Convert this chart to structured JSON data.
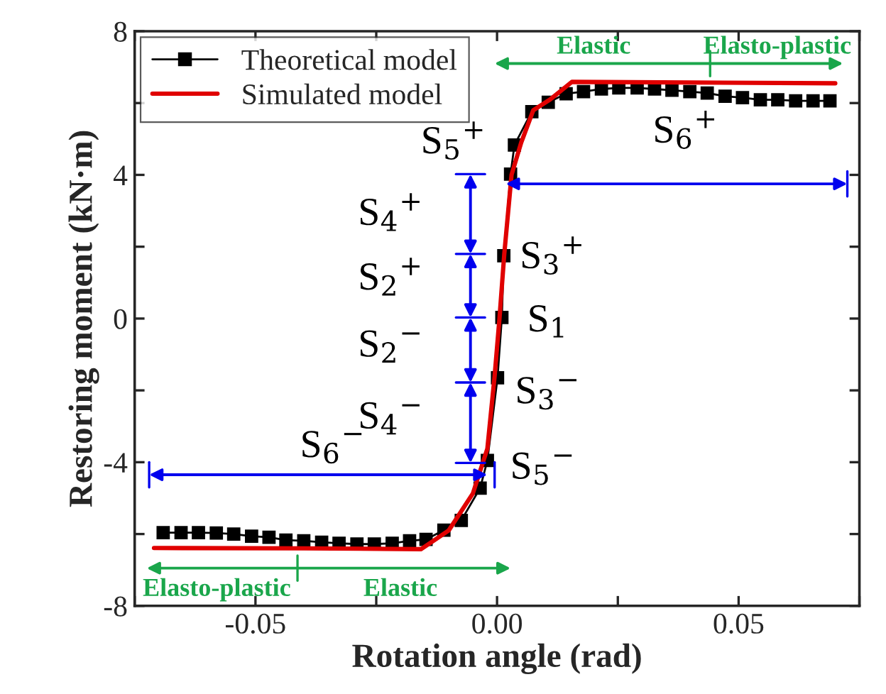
{
  "chart_data": {
    "type": "line",
    "xlabel": "Rotation angle (rad)",
    "ylabel": "Restoring moment (kN·m)",
    "xlim": [
      -0.075,
      0.075
    ],
    "ylim": [
      -8,
      8
    ],
    "xticks": [
      {
        "value": -0.075,
        "label": null
      },
      {
        "value": -0.05,
        "label": "-0.05"
      },
      {
        "value": -0.025,
        "label": null
      },
      {
        "value": 0,
        "label": "0.00"
      },
      {
        "value": 0.025,
        "label": null
      },
      {
        "value": 0.05,
        "label": "0.05"
      },
      {
        "value": 0.075,
        "label": null
      }
    ],
    "yticks": [
      -8,
      {
        "value": -6,
        "label": null
      },
      -4,
      {
        "value": -2,
        "label": null
      },
      0,
      {
        "value": 2,
        "label": null
      },
      4,
      {
        "value": 6,
        "label": null
      },
      8
    ],
    "legend": "top left",
    "grid": false,
    "series": [
      {
        "name": "Theoretical model",
        "color": "#000000",
        "marker": "square",
        "x": [
          -0.0691,
          -0.0654,
          -0.0618,
          -0.0581,
          -0.0545,
          -0.0508,
          -0.0472,
          -0.0437,
          -0.04,
          -0.0363,
          -0.0327,
          -0.029,
          -0.0254,
          -0.0217,
          -0.0181,
          -0.0147,
          -0.011,
          -0.0074,
          -0.0035,
          -0.002,
          0.0001,
          0.001,
          0.0014,
          0.0028,
          0.0036,
          0.0072,
          0.0106,
          0.0143,
          0.0179,
          0.0216,
          0.0252,
          0.029,
          0.0326,
          0.0362,
          0.0399,
          0.0435,
          0.0472,
          0.0508,
          0.0545,
          0.0581,
          0.0618,
          0.0654,
          0.0689
        ],
        "values": [
          -5.96,
          -5.96,
          -5.96,
          -5.97,
          -6.0,
          -6.06,
          -6.09,
          -6.17,
          -6.19,
          -6.23,
          -6.26,
          -6.28,
          -6.28,
          -6.26,
          -6.19,
          -6.15,
          -5.89,
          -5.62,
          -4.72,
          -3.95,
          -1.65,
          0.03,
          1.75,
          4.02,
          4.83,
          5.76,
          6.02,
          6.26,
          6.32,
          6.39,
          6.42,
          6.42,
          6.39,
          6.36,
          6.32,
          6.28,
          6.19,
          6.15,
          6.09,
          6.09,
          6.06,
          6.06,
          6.06
        ]
      },
      {
        "name": "Simulated model",
        "color": "#e00000",
        "marker": "none",
        "x": [
          -0.071,
          -0.04,
          -0.0157,
          -0.01,
          -0.005,
          -0.002,
          -0.0005,
          0.0005,
          0.0015,
          0.003,
          0.005,
          0.0075,
          0.011,
          0.0155,
          0.07
        ],
        "values": [
          -6.39,
          -6.4,
          -6.42,
          -5.9,
          -4.87,
          -3.62,
          -1.6,
          0,
          1.8,
          4.0,
          4.9,
          5.8,
          6.1,
          6.59,
          6.55
        ]
      }
    ],
    "annotations": [
      "Elastic",
      "Elasto-plastic",
      "Elasto-plastic",
      "Elastic",
      "S$_{5}$$^{+}$",
      "S$_{4}$$^{+}$",
      "S$_{2}$$^{+}$",
      "S$_{2}$$^{−}$",
      "S$_{4}$$^{−}$",
      "S$_{3}$$^{+}$",
      "S$_{1}$",
      "S$_{3}$$^{−}$",
      "S$_{5}$$^{−}$",
      "S$_{6}$$^{+}$",
      "S$_{6}$$^{−}$"
    ]
  }
}
